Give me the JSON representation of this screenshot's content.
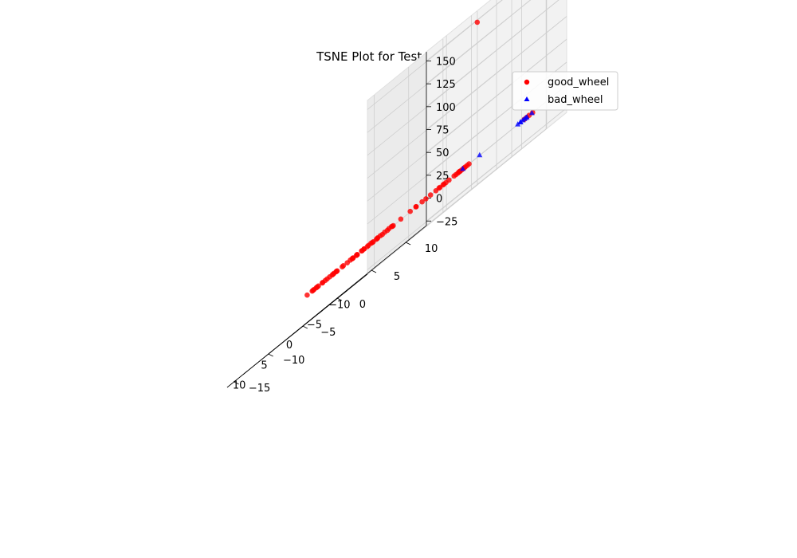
{
  "chart_data": {
    "type": "scatter",
    "projection": "3d",
    "title": "TSNE Plot for Test Embeddings",
    "xlabel": "",
    "ylabel": "",
    "zlabel": "",
    "xlim": [
      -14,
      14
    ],
    "ylim": [
      -16,
      13
    ],
    "zlim": [
      -30,
      160
    ],
    "x_ticks": [
      "−10",
      "−5",
      "0",
      "5",
      "10"
    ],
    "y_ticks": [
      "−15",
      "−10",
      "−5",
      "0",
      "5",
      "10"
    ],
    "z_ticks": [
      "−25",
      "0",
      "25",
      "50",
      "75",
      "100",
      "125",
      "150"
    ],
    "grid": true,
    "legend_position": "upper-right",
    "colors": {
      "good_wheel": "#ff0000",
      "bad_wheel": "#0000ff"
    },
    "series": [
      {
        "name": "good_wheel",
        "marker": "circle",
        "color": "#ff0000",
        "points": [
          [
            -12.6,
            1,
            148
          ],
          [
            -8,
            -8,
            0
          ],
          [
            -7,
            -8,
            0
          ],
          [
            -6,
            -8,
            0
          ],
          [
            -5,
            -8,
            0
          ],
          [
            -4,
            -8,
            0
          ],
          [
            -3,
            -8,
            0
          ],
          [
            -2,
            -8,
            0
          ],
          [
            -1,
            -8,
            0
          ],
          [
            0,
            -8,
            0
          ],
          [
            1,
            -8,
            0
          ],
          [
            2,
            -8,
            0
          ],
          [
            3,
            -8,
            0
          ],
          [
            4,
            -8,
            0
          ],
          [
            5,
            -8,
            0
          ],
          [
            6,
            -8,
            0
          ],
          [
            7,
            -8,
            0
          ],
          [
            8,
            -8,
            0
          ],
          [
            9,
            -8,
            0
          ],
          [
            -7.5,
            -7.5,
            0
          ],
          [
            -5.5,
            -8.5,
            0
          ],
          [
            -3.5,
            -7.5,
            0
          ],
          [
            -1.5,
            -8.5,
            0
          ],
          [
            0.5,
            -7.5,
            0
          ],
          [
            2.5,
            -8.5,
            0
          ],
          [
            4.5,
            -7.5,
            0
          ],
          [
            6.5,
            -8.5,
            0
          ],
          [
            8.5,
            -7.5,
            0
          ],
          [
            9,
            -7,
            0
          ],
          [
            9.5,
            -6,
            0
          ],
          [
            10,
            -5,
            0
          ],
          [
            10,
            -4,
            0
          ],
          [
            10,
            -3,
            0
          ],
          [
            10,
            -2,
            0
          ],
          [
            10,
            -1,
            0
          ],
          [
            10,
            0,
            0
          ],
          [
            10,
            1,
            0
          ],
          [
            10,
            2,
            0
          ],
          [
            10,
            3,
            0
          ],
          [
            10,
            4,
            0
          ],
          [
            10,
            5,
            0
          ],
          [
            9.5,
            6,
            0
          ],
          [
            9,
            7,
            0
          ],
          [
            8,
            8,
            0
          ],
          [
            7,
            8.5,
            0
          ],
          [
            6,
            9,
            0
          ],
          [
            5,
            9,
            0
          ],
          [
            4,
            9,
            0
          ],
          [
            3,
            9,
            0
          ],
          [
            2,
            9,
            0
          ],
          [
            1,
            9,
            0
          ],
          [
            9.5,
            -5,
            0
          ],
          [
            10.5,
            -3,
            0
          ],
          [
            9.5,
            -1,
            0
          ],
          [
            10.5,
            1,
            0
          ],
          [
            9.5,
            3,
            0
          ],
          [
            10.5,
            5,
            0
          ],
          [
            8.5,
            7.5,
            0
          ],
          [
            6.5,
            9.5,
            0
          ],
          [
            4.5,
            8.5,
            0
          ],
          [
            2.5,
            9.5,
            0
          ],
          [
            5,
            -2,
            0
          ],
          [
            5.3,
            -2.4,
            0
          ],
          [
            -6,
            3,
            0
          ],
          [
            -5,
            4,
            0
          ],
          [
            -4,
            5,
            0
          ],
          [
            -3,
            6,
            0
          ],
          [
            -2,
            7,
            0
          ],
          [
            -1,
            8,
            0
          ],
          [
            0,
            9,
            0
          ],
          [
            -1.5,
            6,
            0
          ],
          [
            0.5,
            6,
            0
          ],
          [
            2.5,
            6,
            0
          ],
          [
            4.5,
            6,
            0
          ],
          [
            6.5,
            6,
            0
          ],
          [
            -12,
            9,
            0
          ],
          [
            -11.5,
            9,
            0
          ],
          [
            -11,
            9,
            0
          ],
          [
            -12,
            9.5,
            0
          ]
        ]
      },
      {
        "name": "bad_wheel",
        "marker": "triangle",
        "color": "#0000ff",
        "points": [
          [
            -12,
            9.4,
            0
          ],
          [
            -11,
            9.4,
            0
          ],
          [
            -10,
            10,
            0
          ],
          [
            -9,
            10.5,
            0
          ],
          [
            -8,
            11,
            0
          ],
          [
            -7.5,
            11,
            0
          ],
          [
            -7,
            11.4,
            0
          ],
          [
            -6.3,
            11.5,
            0
          ],
          [
            2,
            12,
            0
          ],
          [
            4,
            11,
            0
          ]
        ]
      }
    ]
  }
}
